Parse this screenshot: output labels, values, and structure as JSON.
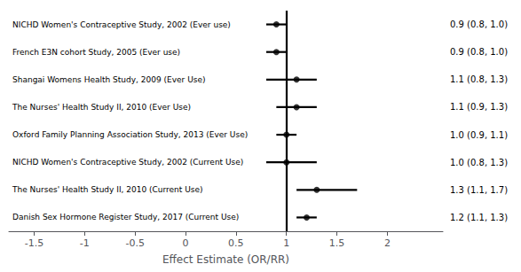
{
  "chart_data": {
    "type": "forest",
    "categories": [
      "NICHD Women's Contraceptive Study, 2002 (Ever use)",
      "French E3N cohort Study, 2005 (Ever use)",
      "Shangai Womens Health Study, 2009 (Ever Use)",
      "The Nurses' Health Study II, 2010 (Ever Use)",
      "Oxford Family Planning Association Study, 2013 (Ever Use)",
      "NICHD Women's Contraceptive Study, 2002 (Current Use)",
      "The Nurses' Health Study II, 2010 (Current Use)",
      "Danish Sex Hormone Register Study, 2017 (Current Use)"
    ],
    "values": [
      0.9,
      0.9,
      1.1,
      1.1,
      1.0,
      1.0,
      1.3,
      1.2
    ],
    "ci_low": [
      0.8,
      0.8,
      0.8,
      0.9,
      0.9,
      0.8,
      1.1,
      1.1
    ],
    "ci_high": [
      1.0,
      1.0,
      1.3,
      1.3,
      1.1,
      1.3,
      1.7,
      1.3
    ],
    "value_labels": [
      "0.9 (0.8, 1.0)",
      "0.9 (0.8, 1.0)",
      "1.1 (0.8, 1.3)",
      "1.1 (0.9, 1.3)",
      "1.0 (0.9, 1.1)",
      "1.0 (0.8, 1.3)",
      "1.3 (1.1, 1.7)",
      "1.2 (1.1, 1.3)"
    ],
    "data_labels": true,
    "xlabel": "Effect Estimate (OR/RR)",
    "xlim": [
      -1.75,
      2.55
    ],
    "xticks": [
      -1.5,
      -1,
      -0.5,
      0,
      0.5,
      1,
      1.5,
      2
    ],
    "ref_line": 1.0,
    "color": "#000000",
    "grid": false
  }
}
